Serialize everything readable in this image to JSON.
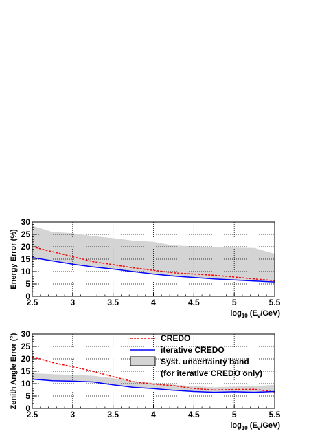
{
  "chart_data": [
    {
      "type": "line",
      "xlabel": "log",
      "xlabel_sub": "10",
      "xlabel_rest": " (E",
      "xlabel_sub2": "ν",
      "xlabel_end": "/GeV)",
      "ylabel": "Energy Error (%)",
      "xlim": [
        2.5,
        5.5
      ],
      "ylim": [
        0,
        30
      ],
      "xticks": [
        "2.5",
        "3",
        "3.5",
        "4",
        "4.5",
        "5",
        "5.5"
      ],
      "yticks": [
        "0",
        "5",
        "10",
        "15",
        "20",
        "25",
        "30"
      ],
      "grid": true,
      "series": [
        {
          "name": "CREDO",
          "style": "dashed",
          "color": "#ff0000",
          "x": [
            2.5,
            2.75,
            3.0,
            3.25,
            3.5,
            3.75,
            4.0,
            4.25,
            4.5,
            4.75,
            5.0,
            5.25,
            5.5
          ],
          "y": [
            20.0,
            18.0,
            16.0,
            14.0,
            12.8,
            11.5,
            10.5,
            9.5,
            9.0,
            8.5,
            7.8,
            7.0,
            6.3
          ]
        },
        {
          "name": "iterative CREDO",
          "style": "solid",
          "color": "#0000ff",
          "x": [
            2.5,
            2.75,
            3.0,
            3.25,
            3.5,
            3.75,
            4.0,
            4.25,
            4.5,
            4.75,
            5.0,
            5.25,
            5.5
          ],
          "y": [
            15.6,
            14.3,
            13.0,
            11.9,
            11.0,
            10.0,
            9.0,
            8.2,
            7.6,
            7.0,
            6.6,
            6.2,
            5.8
          ]
        }
      ],
      "band": {
        "name": "Syst. uncertainty band",
        "color": "#d4d4d4",
        "x": [
          2.5,
          2.75,
          3.0,
          3.25,
          3.5,
          3.75,
          4.0,
          4.25,
          4.5,
          4.75,
          5.0,
          5.25,
          5.5
        ],
        "lower": [
          15.6,
          14.3,
          13.0,
          11.9,
          11.0,
          10.0,
          9.0,
          8.2,
          7.6,
          7.0,
          6.6,
          6.2,
          5.8
        ],
        "upper": [
          28.5,
          26.0,
          25.5,
          24.3,
          23.5,
          22.5,
          22.0,
          20.5,
          20.2,
          19.8,
          19.7,
          19.5,
          17.2
        ]
      }
    },
    {
      "type": "line",
      "xlabel": "log",
      "xlabel_sub": "10",
      "xlabel_rest": " (E",
      "xlabel_sub2": "ν",
      "xlabel_end": "/GeV)",
      "ylabel": "Zenith Angle Error (°)",
      "xlim": [
        2.5,
        5.5
      ],
      "ylim": [
        0,
        30
      ],
      "xticks": [
        "2.5",
        "3",
        "3.5",
        "4",
        "4.5",
        "5",
        "5.5"
      ],
      "yticks": [
        "0",
        "5",
        "10",
        "15",
        "20",
        "25",
        "30"
      ],
      "grid": true,
      "legend": {
        "placement": "top-right",
        "entries": [
          "CREDO",
          "iterative CREDO",
          "Syst. uncertainty band",
          "(for iterative CREDO only)"
        ]
      },
      "series": [
        {
          "name": "CREDO",
          "style": "dashed",
          "color": "#ff0000",
          "x": [
            2.5,
            2.6,
            2.75,
            3.0,
            3.25,
            3.5,
            3.75,
            4.0,
            4.25,
            4.5,
            4.75,
            5.0,
            5.25,
            5.5
          ],
          "y": [
            20.5,
            20.0,
            18.5,
            16.8,
            15.0,
            12.8,
            10.8,
            9.8,
            9.2,
            8.0,
            7.4,
            7.6,
            7.7,
            6.6
          ]
        },
        {
          "name": "iterative CREDO",
          "style": "solid",
          "color": "#0000ff",
          "x": [
            2.5,
            2.75,
            3.0,
            3.25,
            3.5,
            3.75,
            4.0,
            4.25,
            4.5,
            4.75,
            5.0,
            5.25,
            5.5
          ],
          "y": [
            11.8,
            11.2,
            11.0,
            10.7,
            9.5,
            8.5,
            8.0,
            7.3,
            6.8,
            6.5,
            6.7,
            6.5,
            6.8
          ]
        }
      ],
      "band": {
        "name": "Syst. uncertainty band",
        "color": "#d4d4d4",
        "x": [
          2.5,
          2.75,
          3.0,
          3.25,
          3.5,
          3.75,
          4.0,
          4.25,
          4.5,
          4.75,
          5.0,
          5.25,
          5.5
        ],
        "lower": [
          11.8,
          11.2,
          11.0,
          10.7,
          9.5,
          8.5,
          8.0,
          7.3,
          6.8,
          6.5,
          6.7,
          6.5,
          6.8
        ],
        "upper": [
          14.2,
          13.8,
          13.5,
          13.2,
          12.2,
          11.0,
          10.3,
          9.6,
          9.0,
          8.5,
          8.8,
          9.0,
          9.5
        ]
      }
    }
  ]
}
